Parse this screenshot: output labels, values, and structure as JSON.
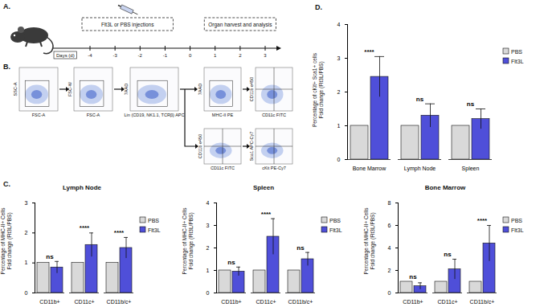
{
  "panel_labels": {
    "A": "A.",
    "B": "B.",
    "C": "C.",
    "D": "D."
  },
  "timeline": {
    "days_label": "Days (d)",
    "days": [
      -4,
      -3,
      -2,
      -1,
      0,
      1,
      2,
      3
    ],
    "injection_text": "Flt3L or PBS injections",
    "injection_days": [
      -4,
      -1
    ],
    "harvest_text": "Organ harvest and analysis",
    "harvest_days": [
      1,
      3
    ]
  },
  "flow_plots": [
    {
      "x_label": "FSC-A",
      "y_label": "SSC-A"
    },
    {
      "x_label": "FSC-A",
      "y_label": "FSC-W"
    },
    {
      "x_label": "Lin (CD19, NK1.1, TCRβ) APC",
      "y_label": "7AAD"
    },
    {
      "x_label": "MHC-II PE",
      "y_label": "7AAD"
    },
    {
      "x_label": "CD11c FITC",
      "y_label": "CD11b e450"
    },
    {
      "x_label": "CD11c FITC",
      "y_label": "CD11b e450"
    },
    {
      "x_label": "cKit PE-Cy7",
      "y_label": "Sca1 APC-Cy7"
    }
  ],
  "chart_data": [
    {
      "type": "bar",
      "title": "Lymph Node",
      "y_label": [
        "Percentage of MHC-II+ Cells",
        "Fold change (Flt3L/PBS)"
      ],
      "categories": [
        "CD11b+",
        "CD11c+",
        "CD11b/c+"
      ],
      "series": [
        {
          "name": "PBS",
          "color": "#d9d9d9",
          "values": [
            1,
            1,
            1
          ]
        },
        {
          "name": "Flt3L",
          "color": "#4f4fd9",
          "values": [
            0.85,
            1.6,
            1.5
          ],
          "errors": [
            0.2,
            0.4,
            0.35
          ]
        }
      ],
      "annotations": [
        "ns",
        "****",
        "****"
      ],
      "ylim": [
        0,
        3
      ],
      "yticks": [
        0,
        1,
        2,
        3
      ],
      "legend": "right"
    },
    {
      "type": "bar",
      "title": "Spleen",
      "y_label": [
        "Percentage of MHC-II+ Cells",
        "Fold change (Flt3L/PBS)"
      ],
      "categories": [
        "CD11b+",
        "CD11c+",
        "CD11b/c+"
      ],
      "series": [
        {
          "name": "PBS",
          "color": "#d9d9d9",
          "values": [
            1,
            1,
            1
          ]
        },
        {
          "name": "Flt3L",
          "color": "#4f4fd9",
          "values": [
            0.95,
            2.5,
            1.5
          ],
          "errors": [
            0.2,
            0.8,
            0.3
          ]
        }
      ],
      "annotations": [
        "ns",
        "****",
        "ns"
      ],
      "ylim": [
        0,
        4
      ],
      "yticks": [
        0,
        1,
        2,
        3,
        4
      ],
      "legend": "right"
    },
    {
      "type": "bar",
      "title": "Bone Marrow",
      "y_label": [
        "Percentage of MHC-II+ Cells",
        "Fold change (Flt3L/PBS)"
      ],
      "categories": [
        "CD11b+",
        "CD11c+",
        "CD11b/c+"
      ],
      "series": [
        {
          "name": "PBS",
          "color": "#d9d9d9",
          "values": [
            1,
            1,
            1
          ]
        },
        {
          "name": "Flt3L",
          "color": "#4f4fd9",
          "values": [
            0.6,
            2.1,
            4.4
          ],
          "errors": [
            0.3,
            0.9,
            1.6
          ]
        }
      ],
      "annotations": [
        "ns",
        "ns",
        "****"
      ],
      "ylim": [
        0,
        8
      ],
      "yticks": [
        0,
        2,
        4,
        6,
        8
      ],
      "legend": "right"
    },
    {
      "type": "bar",
      "y_label": [
        "Percentage of cKit+ Sca1+ cells",
        "Fold change (Flt3L/PBS)"
      ],
      "categories": [
        "Bone Marrow",
        "Lymph Node",
        "Spleen"
      ],
      "series": [
        {
          "name": "PBS",
          "color": "#d9d9d9",
          "values": [
            1,
            1,
            1
          ]
        },
        {
          "name": "Flt3L",
          "color": "#4f4fd9",
          "values": [
            2.45,
            1.3,
            1.2
          ],
          "errors": [
            0.6,
            0.35,
            0.3
          ]
        }
      ],
      "annotations": [
        "****",
        "ns",
        "ns"
      ],
      "ylim": [
        0,
        4
      ],
      "yticks": [
        0,
        1,
        2,
        3,
        4
      ],
      "legend": "right"
    }
  ]
}
